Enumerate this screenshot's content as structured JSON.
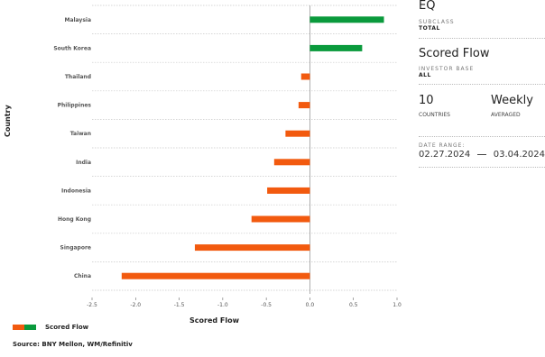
{
  "chart_data": {
    "type": "bar",
    "orientation": "horizontal",
    "categories": [
      "Malaysia",
      "South Korea",
      "Thailand",
      "Philippines",
      "Taiwan",
      "India",
      "Indonesia",
      "Hong Kong",
      "Singapore",
      "China"
    ],
    "series": [
      {
        "name": "Scored Flow",
        "values": [
          0.85,
          0.6,
          -0.1,
          -0.13,
          -0.28,
          -0.41,
          -0.49,
          -0.67,
          -1.32,
          -2.16
        ]
      }
    ],
    "xlabel": "Scored Flow",
    "ylabel": "Country",
    "xlim": [
      -2.5,
      1.0
    ],
    "xticks": [
      "-2.5",
      "-2.0",
      "-1.5",
      "-1.0",
      "-0.5",
      "0.0",
      "0.5",
      "1.0"
    ],
    "tick_values": [
      -2.5,
      -2.0,
      -1.5,
      -1.0,
      -0.5,
      0.0,
      0.5,
      1.0
    ],
    "colors": {
      "positive": "#0a9a3c",
      "negative": "#f25a0f"
    },
    "grid": "horizontal dotted separators",
    "legend": "bottom-left"
  },
  "legend": {
    "label": "Scored Flow",
    "colors": [
      "#f25a0f",
      "#0a9a3c"
    ]
  },
  "source": "Source: BNY Mellon, WM/Refinitiv",
  "panel": {
    "asset_class": "EQ",
    "subclass_label": "SUBCLASS",
    "subclass_value": "TOTAL",
    "metric": "Scored Flow",
    "investor_base_label": "INVESTOR BASE",
    "investor_base_value": "ALL",
    "countries_count": "10",
    "countries_label": "COUNTRIES",
    "frequency": "Weekly",
    "frequency_label": "AVERAGED",
    "date_range_label": "DATE RANGE:",
    "date_start": "02.27.2024",
    "date_end": "03.04.2024"
  }
}
